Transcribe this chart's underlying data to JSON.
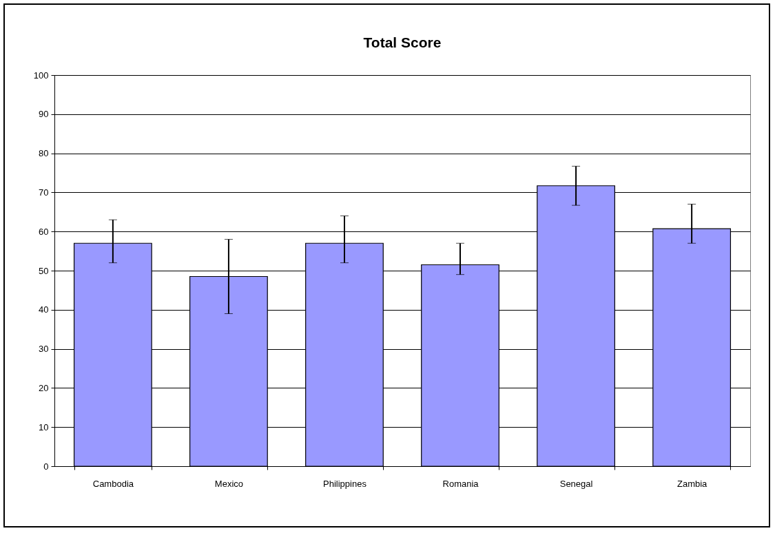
{
  "chart_data": {
    "type": "bar",
    "title": "Total Score",
    "categories": [
      "Cambodia",
      "Mexico",
      "Philippines",
      "Romania",
      "Senegal",
      "Zambia"
    ],
    "values": [
      57,
      48.5,
      57,
      51.5,
      71.7,
      60.7
    ],
    "errors": [
      [
        52,
        63
      ],
      [
        39,
        58
      ],
      [
        52,
        64
      ],
      [
        49,
        57
      ],
      [
        66.7,
        76.7
      ],
      [
        57,
        67
      ]
    ],
    "color": "#9999ff",
    "ylim": [
      0,
      100
    ],
    "yticks": [
      0,
      10,
      20,
      30,
      40,
      50,
      60,
      70,
      80,
      90,
      100
    ],
    "grid": "y"
  }
}
